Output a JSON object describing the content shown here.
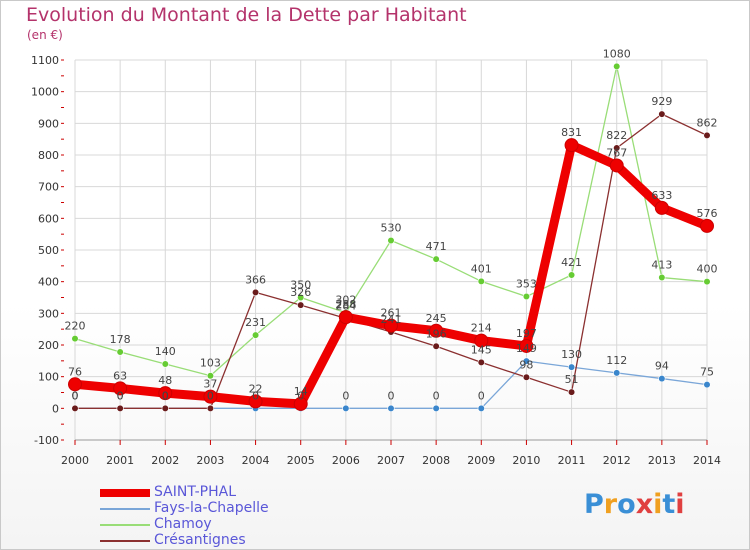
{
  "title": "Evolution du Montant de la Dette par Habitant",
  "subtitle": "(en €)",
  "logo_text": "Proxiti",
  "colors": {
    "title": "#b4336b",
    "grid": "#d8d8d8",
    "axis": "#333333",
    "tick_marks": "#cc0000",
    "label": "#444444",
    "logo": [
      "#3a8fd6",
      "#f0a020",
      "#3a8fd6",
      "#e04040",
      "#f0a020",
      "#3a8fd6",
      "#e04040"
    ]
  },
  "chart_data": {
    "type": "line",
    "x": [
      2000,
      2001,
      2002,
      2003,
      2004,
      2005,
      2006,
      2007,
      2008,
      2009,
      2010,
      2011,
      2012,
      2013,
      2014
    ],
    "ylim": [
      -100,
      1100
    ],
    "yticks": [
      -100,
      0,
      100,
      200,
      300,
      400,
      500,
      600,
      700,
      800,
      900,
      1000,
      1100
    ],
    "grid": true,
    "legend_position": "bottom-left",
    "series": [
      {
        "name": "SAINT-PHAL",
        "color": "#ee0000",
        "marker": "#ee0000",
        "values": [
          76,
          63,
          48,
          37,
          22,
          14,
          288,
          261,
          245,
          214,
          197,
          831,
          767,
          633,
          576
        ],
        "labels": [
          "76",
          "63",
          "48",
          "37",
          "22",
          "14",
          "288",
          "261",
          "245",
          "214",
          "197",
          "831",
          "767",
          "633",
          "576"
        ]
      },
      {
        "name": "Fays-la-Chapelle",
        "color": "#7aa6d8",
        "marker": "#3a86cc",
        "values": [
          0,
          0,
          0,
          0,
          0,
          0,
          0,
          0,
          0,
          0,
          149,
          130,
          112,
          94,
          75
        ],
        "labels": [
          "0",
          "0",
          "0",
          "0",
          "0",
          "0",
          "0",
          "0",
          "0",
          "0",
          "149",
          "130",
          "112",
          "94",
          "75"
        ]
      },
      {
        "name": "Chamoy",
        "color": "#99dd77",
        "marker": "#66cc33",
        "values": [
          220,
          178,
          140,
          103,
          231,
          350,
          302,
          530,
          471,
          401,
          353,
          421,
          1080,
          413,
          400
        ],
        "labels": [
          "220",
          "178",
          "140",
          "103",
          "231",
          "350",
          "302",
          "530",
          "471",
          "401",
          "353",
          "421",
          "1080",
          "413",
          "400"
        ]
      },
      {
        "name": "Crésantignes",
        "color": "#8b3030",
        "marker": "#6a1b1b",
        "values": [
          0,
          0,
          0,
          0,
          366,
          326,
          284,
          241,
          196,
          145,
          98,
          51,
          822,
          929,
          862
        ],
        "labels": [
          "0",
          "0",
          "0",
          "0",
          "366",
          "326",
          "284",
          "241",
          "196",
          "145",
          "98",
          "51",
          "822",
          "929",
          "862"
        ]
      }
    ]
  }
}
